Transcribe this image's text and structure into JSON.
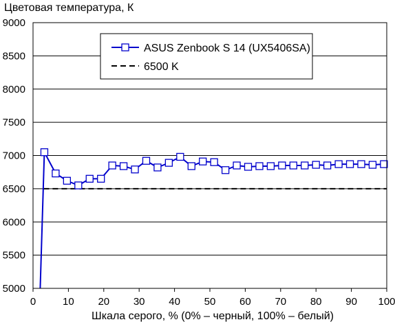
{
  "chart_data": {
    "type": "line",
    "ylabel": "Цветовая температура, К",
    "xlabel": "Шкала серого, % (0% – черный, 100% – белый)",
    "xlim": [
      0,
      100
    ],
    "ylim": [
      5000,
      9000
    ],
    "x_ticks": [
      0,
      10,
      20,
      30,
      40,
      50,
      60,
      70,
      80,
      90,
      100
    ],
    "y_ticks": [
      5000,
      5500,
      6000,
      6500,
      7000,
      7500,
      8000,
      8500,
      9000
    ],
    "grid": "horizontal",
    "legend": "top-center",
    "series": [
      {
        "name": "ASUS Zenbook S 14 (UX5406SA)",
        "color": "#0000cc",
        "marker": "open-square",
        "x": [
          2,
          3.2,
          6.4,
          9.6,
          12.8,
          16,
          19.2,
          22.4,
          25.6,
          28.8,
          32,
          35.2,
          38.4,
          41.6,
          44.8,
          48,
          51.2,
          54.4,
          57.6,
          60.8,
          64,
          67.2,
          70.4,
          73.6,
          76.8,
          80,
          83.2,
          86.4,
          89.6,
          92.8,
          96,
          99.2
        ],
        "y": [
          4950,
          7050,
          6730,
          6620,
          6550,
          6650,
          6650,
          6850,
          6840,
          6790,
          6920,
          6820,
          6890,
          6980,
          6840,
          6910,
          6900,
          6780,
          6850,
          6830,
          6840,
          6840,
          6850,
          6850,
          6850,
          6860,
          6850,
          6870,
          6870,
          6870,
          6860,
          6870
        ]
      },
      {
        "name": "6500 K",
        "color": "#000000",
        "style": "dashed",
        "x": [
          3,
          100
        ],
        "y": [
          6500,
          6500
        ]
      }
    ]
  }
}
